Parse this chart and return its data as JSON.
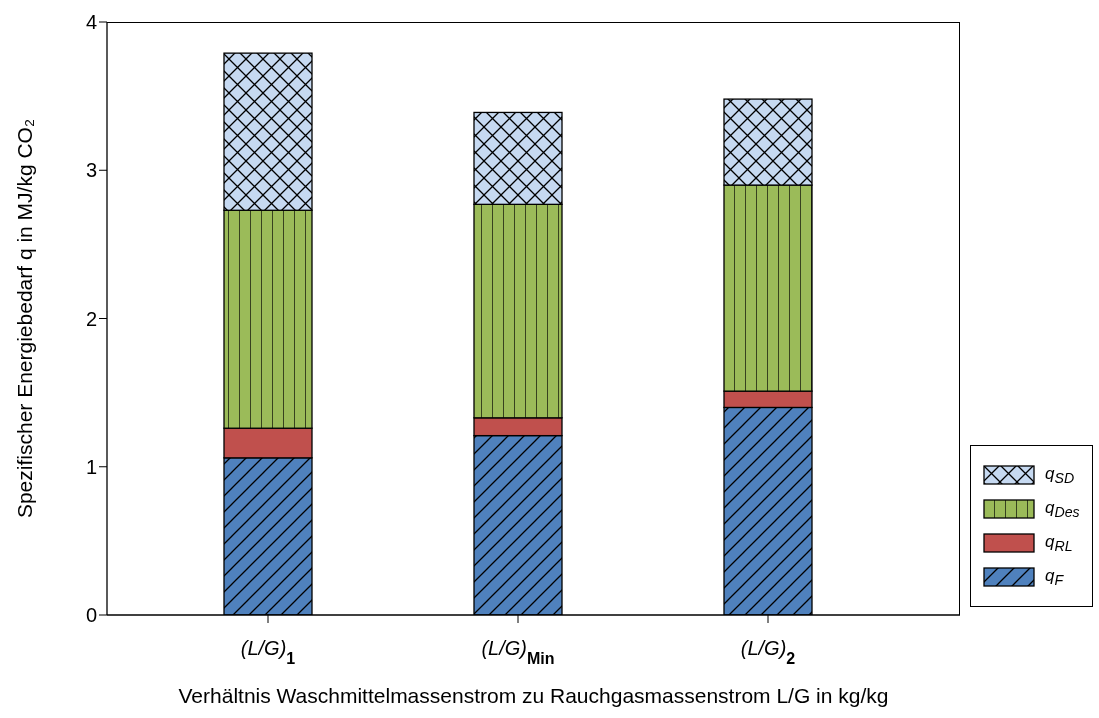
{
  "chart_data": {
    "type": "bar",
    "stacked": true,
    "xlabel": "Verhältnis Waschmittelmassenstrom zu Rauchgasmassenstrom L/G in kg/kg",
    "ylabel": "Spezifischer Energiebedarf q in MJ/kg CO₂",
    "categories": [
      "(L/G)$_{1}$",
      "(L/G)$_{Min}$",
      "(L/G)$_{2}$"
    ],
    "series": [
      {
        "name": "q$_{F}$",
        "color": "#4f81bd",
        "values": [
          1.06,
          1.21,
          1.4
        ]
      },
      {
        "name": "q$_{RL}$",
        "color": "#c0504d",
        "values": [
          0.2,
          0.12,
          0.11
        ]
      },
      {
        "name": "q$_{Des}$",
        "color": "#9bbb59",
        "values": [
          1.47,
          1.44,
          1.39
        ]
      },
      {
        "name": "q$_{SD}$",
        "color": "#c6d9f1",
        "values": [
          1.06,
          0.62,
          0.58
        ]
      }
    ],
    "ylim": [
      0,
      4
    ],
    "yticks": [
      0,
      1,
      2,
      3,
      4
    ],
    "legend": "bottom right"
  }
}
